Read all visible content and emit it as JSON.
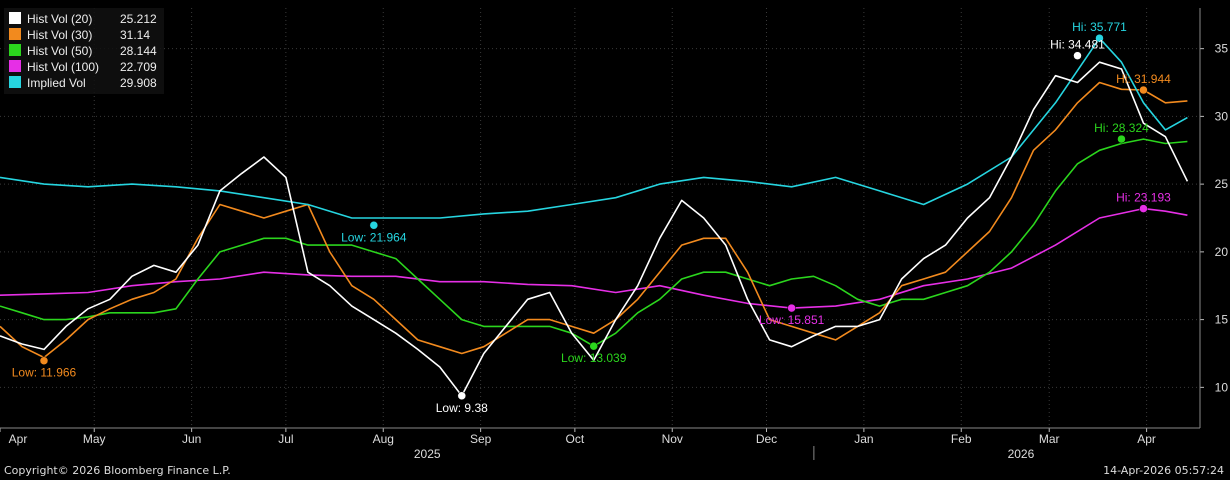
{
  "chart_data": {
    "type": "line",
    "title": "",
    "xlabel": "",
    "ylabel": "",
    "ylim": [
      7,
      38
    ],
    "yticks": [
      10,
      15,
      20,
      25,
      30,
      35
    ],
    "grid": true,
    "legend_placement": "top-left",
    "x_start": "2025-04-01",
    "x_end": "2026-04-14",
    "x_domain": [
      "2025-04-01",
      "2026-04-18"
    ],
    "months": [
      {
        "label": "Apr",
        "date": "2025-04-01"
      },
      {
        "label": "May",
        "date": "2025-05-01"
      },
      {
        "label": "Jun",
        "date": "2025-06-01"
      },
      {
        "label": "Jul",
        "date": "2025-07-01"
      },
      {
        "label": "Aug",
        "date": "2025-08-01"
      },
      {
        "label": "Sep",
        "date": "2025-09-01"
      },
      {
        "label": "Oct",
        "date": "2025-10-01"
      },
      {
        "label": "Nov",
        "date": "2025-11-01"
      },
      {
        "label": "Dec",
        "date": "2025-12-01"
      },
      {
        "label": "Jan",
        "date": "2026-01-01"
      },
      {
        "label": "Feb",
        "date": "2026-02-01"
      },
      {
        "label": "Mar",
        "date": "2026-03-01"
      },
      {
        "label": "Apr",
        "date": "2026-04-01"
      }
    ],
    "years": [
      {
        "label": "2025",
        "date": "2025-08-15"
      },
      {
        "label": "2026",
        "date": "2026-02-20"
      }
    ],
    "series": [
      {
        "name": "Hist Vol (20)",
        "color": "#ffffff",
        "last": "25.212",
        "points": [
          [
            "2025-04-01",
            13.8
          ],
          [
            "2025-04-08",
            13.2
          ],
          [
            "2025-04-15",
            12.8
          ],
          [
            "2025-04-22",
            14.5
          ],
          [
            "2025-04-29",
            15.8
          ],
          [
            "2025-05-06",
            16.5
          ],
          [
            "2025-05-13",
            18.2
          ],
          [
            "2025-05-20",
            19.0
          ],
          [
            "2025-05-27",
            18.5
          ],
          [
            "2025-06-03",
            20.5
          ],
          [
            "2025-06-10",
            24.5
          ],
          [
            "2025-06-17",
            25.8
          ],
          [
            "2025-06-24",
            27.0
          ],
          [
            "2025-07-01",
            25.5
          ],
          [
            "2025-07-08",
            18.5
          ],
          [
            "2025-07-15",
            17.5
          ],
          [
            "2025-07-22",
            16.0
          ],
          [
            "2025-07-29",
            15.0
          ],
          [
            "2025-08-05",
            14.0
          ],
          [
            "2025-08-12",
            12.8
          ],
          [
            "2025-08-19",
            11.5
          ],
          [
            "2025-08-26",
            9.38
          ],
          [
            "2025-09-02",
            12.5
          ],
          [
            "2025-09-09",
            14.5
          ],
          [
            "2025-09-16",
            16.5
          ],
          [
            "2025-09-23",
            17.0
          ],
          [
            "2025-09-30",
            14.0
          ],
          [
            "2025-10-07",
            12.0
          ],
          [
            "2025-10-14",
            15.0
          ],
          [
            "2025-10-21",
            17.5
          ],
          [
            "2025-10-28",
            21.0
          ],
          [
            "2025-11-04",
            23.8
          ],
          [
            "2025-11-11",
            22.5
          ],
          [
            "2025-11-18",
            20.5
          ],
          [
            "2025-11-25",
            16.5
          ],
          [
            "2025-12-02",
            13.5
          ],
          [
            "2025-12-09",
            13.0
          ],
          [
            "2025-12-16",
            13.8
          ],
          [
            "2025-12-23",
            14.5
          ],
          [
            "2025-12-30",
            14.5
          ],
          [
            "2026-01-06",
            15.0
          ],
          [
            "2026-01-13",
            18.0
          ],
          [
            "2026-01-20",
            19.5
          ],
          [
            "2026-01-27",
            20.5
          ],
          [
            "2026-02-03",
            22.5
          ],
          [
            "2026-02-10",
            24.0
          ],
          [
            "2026-02-17",
            27.0
          ],
          [
            "2026-02-24",
            30.5
          ],
          [
            "2026-03-03",
            33.0
          ],
          [
            "2026-03-10",
            32.5
          ],
          [
            "2026-03-17",
            34.0
          ],
          [
            "2026-03-24",
            33.5
          ],
          [
            "2026-03-31",
            29.5
          ],
          [
            "2026-04-07",
            28.5
          ],
          [
            "2026-04-14",
            25.212
          ]
        ]
      },
      {
        "name": "Hist Vol (30)",
        "color": "#f28a1e",
        "last": "31.14",
        "points": [
          [
            "2025-04-01",
            14.5
          ],
          [
            "2025-04-08",
            13.0
          ],
          [
            "2025-04-15",
            12.2
          ],
          [
            "2025-04-22",
            13.5
          ],
          [
            "2025-04-29",
            15.0
          ],
          [
            "2025-05-06",
            15.8
          ],
          [
            "2025-05-13",
            16.5
          ],
          [
            "2025-05-20",
            17.0
          ],
          [
            "2025-05-27",
            18.0
          ],
          [
            "2025-06-03",
            21.0
          ],
          [
            "2025-06-10",
            23.5
          ],
          [
            "2025-06-17",
            23.0
          ],
          [
            "2025-06-24",
            22.5
          ],
          [
            "2025-07-01",
            23.0
          ],
          [
            "2025-07-08",
            23.5
          ],
          [
            "2025-07-15",
            20.0
          ],
          [
            "2025-07-22",
            17.5
          ],
          [
            "2025-07-29",
            16.5
          ],
          [
            "2025-08-05",
            15.0
          ],
          [
            "2025-08-12",
            13.5
          ],
          [
            "2025-08-19",
            13.0
          ],
          [
            "2025-08-26",
            12.5
          ],
          [
            "2025-09-02",
            13.0
          ],
          [
            "2025-09-09",
            14.0
          ],
          [
            "2025-09-16",
            15.0
          ],
          [
            "2025-09-23",
            15.0
          ],
          [
            "2025-09-30",
            14.5
          ],
          [
            "2025-10-07",
            14.0
          ],
          [
            "2025-10-14",
            15.0
          ],
          [
            "2025-10-21",
            16.5
          ],
          [
            "2025-10-28",
            18.5
          ],
          [
            "2025-11-04",
            20.5
          ],
          [
            "2025-11-11",
            21.0
          ],
          [
            "2025-11-18",
            21.0
          ],
          [
            "2025-11-25",
            18.5
          ],
          [
            "2025-12-02",
            15.0
          ],
          [
            "2025-12-09",
            14.5
          ],
          [
            "2025-12-16",
            14.0
          ],
          [
            "2025-12-23",
            13.5
          ],
          [
            "2025-12-30",
            14.5
          ],
          [
            "2026-01-06",
            15.5
          ],
          [
            "2026-01-13",
            17.5
          ],
          [
            "2026-01-20",
            18.0
          ],
          [
            "2026-01-27",
            18.5
          ],
          [
            "2026-02-03",
            20.0
          ],
          [
            "2026-02-10",
            21.5
          ],
          [
            "2026-02-17",
            24.0
          ],
          [
            "2026-02-24",
            27.5
          ],
          [
            "2026-03-03",
            29.0
          ],
          [
            "2026-03-10",
            31.0
          ],
          [
            "2026-03-17",
            32.5
          ],
          [
            "2026-03-24",
            32.0
          ],
          [
            "2026-03-31",
            31.944
          ],
          [
            "2026-04-07",
            31.0
          ],
          [
            "2026-04-14",
            31.14
          ]
        ]
      },
      {
        "name": "Hist Vol (50)",
        "color": "#2bd51d",
        "last": "28.144",
        "points": [
          [
            "2025-04-01",
            16.0
          ],
          [
            "2025-04-08",
            15.5
          ],
          [
            "2025-04-15",
            15.0
          ],
          [
            "2025-04-22",
            15.0
          ],
          [
            "2025-04-29",
            15.2
          ],
          [
            "2025-05-06",
            15.5
          ],
          [
            "2025-05-13",
            15.5
          ],
          [
            "2025-05-20",
            15.5
          ],
          [
            "2025-05-27",
            15.8
          ],
          [
            "2025-06-03",
            18.0
          ],
          [
            "2025-06-10",
            20.0
          ],
          [
            "2025-06-17",
            20.5
          ],
          [
            "2025-06-24",
            21.0
          ],
          [
            "2025-07-01",
            21.0
          ],
          [
            "2025-07-08",
            20.5
          ],
          [
            "2025-07-15",
            20.5
          ],
          [
            "2025-07-22",
            20.5
          ],
          [
            "2025-07-29",
            20.0
          ],
          [
            "2025-08-05",
            19.5
          ],
          [
            "2025-08-12",
            18.0
          ],
          [
            "2025-08-19",
            16.5
          ],
          [
            "2025-08-26",
            15.0
          ],
          [
            "2025-09-02",
            14.5
          ],
          [
            "2025-09-09",
            14.5
          ],
          [
            "2025-09-16",
            14.5
          ],
          [
            "2025-09-23",
            14.5
          ],
          [
            "2025-09-30",
            14.0
          ],
          [
            "2025-10-07",
            13.039
          ],
          [
            "2025-10-14",
            14.0
          ],
          [
            "2025-10-21",
            15.5
          ],
          [
            "2025-10-28",
            16.5
          ],
          [
            "2025-11-04",
            18.0
          ],
          [
            "2025-11-11",
            18.5
          ],
          [
            "2025-11-18",
            18.5
          ],
          [
            "2025-11-25",
            18.0
          ],
          [
            "2025-12-02",
            17.5
          ],
          [
            "2025-12-09",
            18.0
          ],
          [
            "2025-12-16",
            18.2
          ],
          [
            "2025-12-23",
            17.5
          ],
          [
            "2025-12-30",
            16.5
          ],
          [
            "2026-01-06",
            16.0
          ],
          [
            "2026-01-13",
            16.5
          ],
          [
            "2026-01-20",
            16.5
          ],
          [
            "2026-01-27",
            17.0
          ],
          [
            "2026-02-03",
            17.5
          ],
          [
            "2026-02-10",
            18.5
          ],
          [
            "2026-02-17",
            20.0
          ],
          [
            "2026-02-24",
            22.0
          ],
          [
            "2026-03-03",
            24.5
          ],
          [
            "2026-03-10",
            26.5
          ],
          [
            "2026-03-17",
            27.5
          ],
          [
            "2026-03-24",
            28.0
          ],
          [
            "2026-03-31",
            28.324
          ],
          [
            "2026-04-07",
            28.0
          ],
          [
            "2026-04-14",
            28.144
          ]
        ]
      },
      {
        "name": "Hist Vol (100)",
        "color": "#e62fe6",
        "last": "22.709",
        "points": [
          [
            "2025-04-01",
            16.8
          ],
          [
            "2025-04-15",
            16.9
          ],
          [
            "2025-04-29",
            17.0
          ],
          [
            "2025-05-13",
            17.5
          ],
          [
            "2025-05-27",
            17.8
          ],
          [
            "2025-06-10",
            18.0
          ],
          [
            "2025-06-24",
            18.5
          ],
          [
            "2025-07-08",
            18.3
          ],
          [
            "2025-07-22",
            18.2
          ],
          [
            "2025-08-05",
            18.2
          ],
          [
            "2025-08-19",
            17.8
          ],
          [
            "2025-09-02",
            17.8
          ],
          [
            "2025-09-16",
            17.6
          ],
          [
            "2025-09-30",
            17.5
          ],
          [
            "2025-10-14",
            17.0
          ],
          [
            "2025-10-28",
            17.5
          ],
          [
            "2025-11-11",
            16.8
          ],
          [
            "2025-11-25",
            16.2
          ],
          [
            "2025-12-09",
            15.851
          ],
          [
            "2025-12-23",
            16.0
          ],
          [
            "2026-01-06",
            16.5
          ],
          [
            "2026-01-20",
            17.5
          ],
          [
            "2026-02-03",
            18.0
          ],
          [
            "2026-02-17",
            18.8
          ],
          [
            "2026-03-03",
            20.5
          ],
          [
            "2026-03-17",
            22.5
          ],
          [
            "2026-03-31",
            23.193
          ],
          [
            "2026-04-07",
            23.0
          ],
          [
            "2026-04-14",
            22.709
          ]
        ]
      },
      {
        "name": "Implied Vol",
        "color": "#26d5e0",
        "last": "29.908",
        "points": [
          [
            "2025-04-01",
            25.5
          ],
          [
            "2025-04-15",
            25.0
          ],
          [
            "2025-04-29",
            24.8
          ],
          [
            "2025-05-13",
            25.0
          ],
          [
            "2025-05-27",
            24.8
          ],
          [
            "2025-06-10",
            24.5
          ],
          [
            "2025-06-24",
            24.0
          ],
          [
            "2025-07-08",
            23.5
          ],
          [
            "2025-07-22",
            22.5
          ],
          [
            "2025-08-05",
            22.5
          ],
          [
            "2025-08-19",
            22.5
          ],
          [
            "2025-09-02",
            22.8
          ],
          [
            "2025-09-16",
            23.0
          ],
          [
            "2025-09-30",
            23.5
          ],
          [
            "2025-10-14",
            24.0
          ],
          [
            "2025-10-28",
            25.0
          ],
          [
            "2025-11-11",
            25.5
          ],
          [
            "2025-11-25",
            25.2
          ],
          [
            "2025-12-09",
            24.8
          ],
          [
            "2025-12-23",
            25.5
          ],
          [
            "2026-01-06",
            24.5
          ],
          [
            "2026-01-20",
            23.5
          ],
          [
            "2026-02-03",
            25.0
          ],
          [
            "2026-02-17",
            27.0
          ],
          [
            "2026-03-03",
            31.0
          ],
          [
            "2026-03-17",
            35.771
          ],
          [
            "2026-03-24",
            34.0
          ],
          [
            "2026-03-31",
            31.0
          ],
          [
            "2026-04-07",
            29.0
          ],
          [
            "2026-04-14",
            29.908
          ]
        ]
      }
    ],
    "annotations": [
      {
        "series": 4,
        "date": "2025-07-29",
        "value": 21.964,
        "text": "Low: 21.964",
        "color": "#26d5e0",
        "pos": "below"
      },
      {
        "series": 1,
        "date": "2025-04-15",
        "value": 11.966,
        "text": "Low: 11.966",
        "color": "#f28a1e",
        "pos": "below"
      },
      {
        "series": 0,
        "date": "2025-08-26",
        "value": 9.38,
        "text": "Low: 9.38",
        "color": "#ffffff",
        "pos": "below"
      },
      {
        "series": 2,
        "date": "2025-10-07",
        "value": 13.039,
        "text": "Low: 13.039",
        "color": "#2bd51d",
        "pos": "below"
      },
      {
        "series": 3,
        "date": "2025-12-09",
        "value": 15.851,
        "text": "Low: 15.851",
        "color": "#e62fe6",
        "pos": "below"
      },
      {
        "series": 4,
        "date": "2026-03-17",
        "value": 35.771,
        "text": "Hi: 35.771",
        "color": "#26d5e0",
        "pos": "above"
      },
      {
        "series": 0,
        "date": "2026-03-10",
        "value": 34.481,
        "text": "Hi: 34.481",
        "color": "#ffffff",
        "pos": "above"
      },
      {
        "series": 1,
        "date": "2026-03-31",
        "value": 31.944,
        "text": "Hi: 31.944",
        "color": "#f28a1e",
        "pos": "above"
      },
      {
        "series": 2,
        "date": "2026-03-24",
        "value": 28.324,
        "text": "Hi: 28.324",
        "color": "#2bd51d",
        "pos": "above"
      },
      {
        "series": 3,
        "date": "2026-03-31",
        "value": 23.193,
        "text": "Hi: 23.193",
        "color": "#e62fe6",
        "pos": "above"
      }
    ]
  },
  "footer": {
    "copyright": "Copyright© 2026 Bloomberg Finance L.P.",
    "timestamp": "14-Apr-2026 05:57:24"
  }
}
